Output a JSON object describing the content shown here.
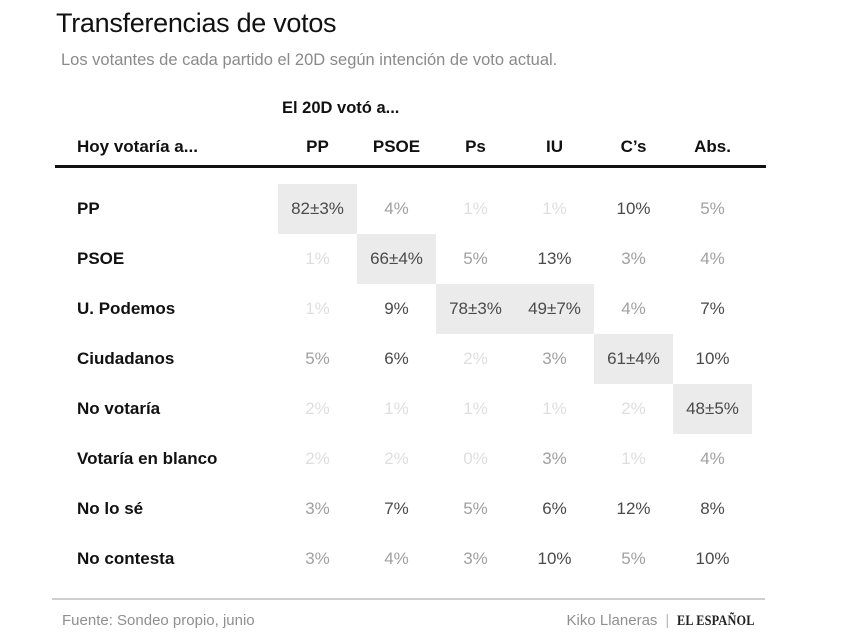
{
  "title": "Transferencias de votos",
  "subtitle": "Los votantes de cada partido el 20D según intención de voto actual.",
  "colors": {
    "dark": "#4a4a4a",
    "medium": "#a0a0a0",
    "light": "#dedede",
    "highlight_bg": "#ebebeb",
    "header_rule": "#111111"
  },
  "chart_data": {
    "type": "table",
    "title": "Transferencias de votos",
    "subtitle": "Los votantes de cada partido el 20D según intención de voto actual.",
    "column_group_label": "El 20D votó a...",
    "row_header": "Hoy votaría a...",
    "columns": [
      "PP",
      "PSOE",
      "Ps",
      "IU",
      "C’s",
      "Abs."
    ],
    "rows": [
      {
        "label": "PP",
        "values": [
          "82±3%",
          "4%",
          "1%",
          "1%",
          "10%",
          "5%"
        ],
        "highlight": [
          0
        ]
      },
      {
        "label": "PSOE",
        "values": [
          "1%",
          "66±4%",
          "5%",
          "13%",
          "3%",
          "4%"
        ],
        "highlight": [
          1
        ]
      },
      {
        "label": "U. Podemos",
        "values": [
          "1%",
          "9%",
          "78±3%",
          "49±7%",
          "4%",
          "7%"
        ],
        "highlight": [
          2,
          3
        ]
      },
      {
        "label": "Ciudadanos",
        "values": [
          "5%",
          "6%",
          "2%",
          "3%",
          "61±4%",
          "10%"
        ],
        "highlight": [
          4
        ]
      },
      {
        "label": "No votaría",
        "values": [
          "2%",
          "1%",
          "1%",
          "1%",
          "2%",
          "48±5%"
        ],
        "highlight": [
          5
        ]
      },
      {
        "label": "Votaría en blanco",
        "values": [
          "2%",
          "2%",
          "0%",
          "3%",
          "1%",
          "4%"
        ],
        "highlight": []
      },
      {
        "label": "No lo sé",
        "values": [
          "3%",
          "7%",
          "5%",
          "6%",
          "12%",
          "8%"
        ],
        "highlight": []
      },
      {
        "label": "No contesta",
        "values": [
          "3%",
          "4%",
          "3%",
          "10%",
          "5%",
          "10%"
        ],
        "highlight": []
      }
    ]
  },
  "footer": {
    "source": "Fuente: Sondeo propio, junio",
    "author": "Kiko Llaneras",
    "separator": "|",
    "brand": "EL ESPAÑOL"
  }
}
